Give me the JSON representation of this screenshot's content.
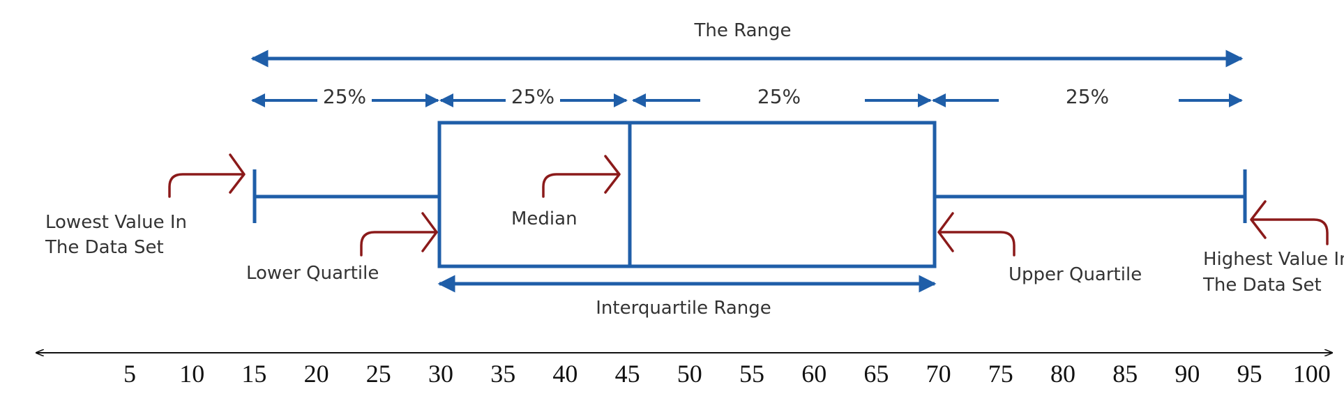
{
  "title": "The Range",
  "segments": [
    "25%",
    "25%",
    "25%",
    "25%"
  ],
  "labels": {
    "lowest": [
      "Lowest Value In",
      "The Data Set"
    ],
    "lower_quartile": "Lower Quartile",
    "median": "Median",
    "upper_quartile": "Upper Quartile",
    "highest": [
      "Highest Value In",
      "The Data Set"
    ],
    "iqr": "Interquartile Range"
  },
  "box_plot": {
    "minimum": 15,
    "lower_quartile": 30,
    "median": 45,
    "upper_quartile": 70,
    "maximum": 95
  },
  "axis": {
    "ticks": [
      5,
      10,
      15,
      20,
      25,
      30,
      35,
      40,
      45,
      50,
      55,
      60,
      65,
      70,
      75,
      80,
      85,
      90,
      95,
      100
    ]
  },
  "colors": {
    "structure": "#1f5ea8",
    "pointer": "#8b1a1a",
    "axis": "#111111",
    "text": "#333333"
  }
}
